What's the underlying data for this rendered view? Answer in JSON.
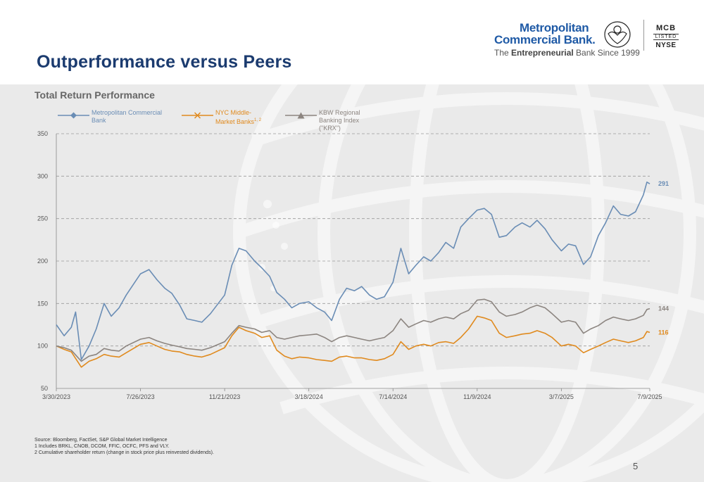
{
  "header": {
    "title": "Outperformance versus Peers"
  },
  "logo": {
    "line1": "Metropolitan",
    "line2": "Commercial Bank.",
    "tagline_pre": "The ",
    "tagline_bold": "Entrepreneurial",
    "tagline_post": " Bank Since 1999",
    "ticker": "MCB",
    "listed": "LISTED",
    "exchange": "NYSE"
  },
  "colors": {
    "mcb": "#6a8db5",
    "nyc": "#e08a1e",
    "krx": "#8c8580",
    "title": "#1b3b6f"
  },
  "chart_data": {
    "type": "line",
    "title": "Total Return Performance",
    "ylim": [
      50,
      350
    ],
    "yticks": [
      50,
      100,
      150,
      200,
      250,
      300,
      350
    ],
    "xticks": [
      "3/30/2023",
      "7/26/2023",
      "11/21/2023",
      "3/18/2024",
      "7/14/2024",
      "11/9/2024",
      "3/7/2025",
      "7/9/2025"
    ],
    "grid": "horizontal dashed",
    "legend_position": "top-left",
    "series": [
      {
        "name": "Metropolitan Commercial Bank",
        "marker": "diamond",
        "color": "#6a8db5",
        "end_label": "291",
        "values": [
          [
            "3/30/2023",
            125
          ],
          [
            "4/10/2023",
            112
          ],
          [
            "4/20/2023",
            122
          ],
          [
            "4/26/2023",
            140
          ],
          [
            "5/4/2023",
            84
          ],
          [
            "5/15/2023",
            100
          ],
          [
            "5/25/2023",
            120
          ],
          [
            "6/5/2023",
            150
          ],
          [
            "6/15/2023",
            135
          ],
          [
            "6/26/2023",
            145
          ],
          [
            "7/6/2023",
            160
          ],
          [
            "7/26/2023",
            185
          ],
          [
            "8/7/2023",
            190
          ],
          [
            "8/18/2023",
            178
          ],
          [
            "8/29/2023",
            168
          ],
          [
            "9/8/2023",
            162
          ],
          [
            "9/19/2023",
            148
          ],
          [
            "9/29/2023",
            132
          ],
          [
            "10/10/2023",
            130
          ],
          [
            "10/20/2023",
            128
          ],
          [
            "11/1/2023",
            138
          ],
          [
            "11/21/2023",
            160
          ],
          [
            "12/1/2023",
            195
          ],
          [
            "12/11/2023",
            215
          ],
          [
            "12/21/2023",
            212
          ],
          [
            "1/2/2024",
            200
          ],
          [
            "1/12/2024",
            192
          ],
          [
            "1/23/2024",
            182
          ],
          [
            "2/2/2024",
            163
          ],
          [
            "2/13/2024",
            155
          ],
          [
            "2/23/2024",
            145
          ],
          [
            "3/5/2024",
            150
          ],
          [
            "3/18/2024",
            152
          ],
          [
            "3/29/2024",
            145
          ],
          [
            "4/9/2024",
            140
          ],
          [
            "4/19/2024",
            130
          ],
          [
            "4/30/2024",
            155
          ],
          [
            "5/10/2024",
            168
          ],
          [
            "5/21/2024",
            165
          ],
          [
            "5/31/2024",
            170
          ],
          [
            "6/11/2024",
            160
          ],
          [
            "6/21/2024",
            155
          ],
          [
            "7/2/2024",
            158
          ],
          [
            "7/14/2024",
            175
          ],
          [
            "7/25/2024",
            215
          ],
          [
            "8/5/2024",
            185
          ],
          [
            "8/15/2024",
            195
          ],
          [
            "8/26/2024",
            205
          ],
          [
            "9/5/2024",
            200
          ],
          [
            "9/16/2024",
            210
          ],
          [
            "9/26/2024",
            222
          ],
          [
            "10/7/2024",
            215
          ],
          [
            "10/17/2024",
            240
          ],
          [
            "10/28/2024",
            250
          ],
          [
            "11/9/2024",
            260
          ],
          [
            "11/19/2024",
            262
          ],
          [
            "11/29/2024",
            255
          ],
          [
            "12/10/2024",
            228
          ],
          [
            "12/20/2024",
            230
          ],
          [
            "1/1/2025",
            240
          ],
          [
            "1/11/2025",
            245
          ],
          [
            "1/22/2025",
            240
          ],
          [
            "2/1/2025",
            248
          ],
          [
            "2/12/2025",
            238
          ],
          [
            "2/22/2025",
            225
          ],
          [
            "3/7/2025",
            212
          ],
          [
            "3/17/2025",
            220
          ],
          [
            "3/27/2025",
            218
          ],
          [
            "4/7/2025",
            196
          ],
          [
            "4/17/2025",
            205
          ],
          [
            "4/28/2025",
            230
          ],
          [
            "5/8/2025",
            245
          ],
          [
            "5/19/2025",
            265
          ],
          [
            "5/29/2025",
            255
          ],
          [
            "6/9/2025",
            253
          ],
          [
            "6/19/2025",
            258
          ],
          [
            "6/30/2025",
            278
          ],
          [
            "7/5/2025",
            293
          ],
          [
            "7/9/2025",
            291
          ]
        ]
      },
      {
        "name": "NYC Middle-Market Banks",
        "name_sup": "1, 2",
        "marker": "x",
        "color": "#e08a1e",
        "end_label": "116",
        "values": [
          [
            "3/30/2023",
            100
          ],
          [
            "4/10/2023",
            96
          ],
          [
            "4/20/2023",
            93
          ],
          [
            "5/4/2023",
            75
          ],
          [
            "5/15/2023",
            82
          ],
          [
            "5/25/2023",
            85
          ],
          [
            "6/5/2023",
            90
          ],
          [
            "6/15/2023",
            88
          ],
          [
            "6/26/2023",
            87
          ],
          [
            "7/6/2023",
            92
          ],
          [
            "7/26/2023",
            102
          ],
          [
            "8/7/2023",
            104
          ],
          [
            "8/18/2023",
            100
          ],
          [
            "8/29/2023",
            96
          ],
          [
            "9/8/2023",
            94
          ],
          [
            "9/19/2023",
            93
          ],
          [
            "9/29/2023",
            90
          ],
          [
            "10/10/2023",
            88
          ],
          [
            "10/20/2023",
            87
          ],
          [
            "11/1/2023",
            90
          ],
          [
            "11/21/2023",
            98
          ],
          [
            "12/1/2023",
            112
          ],
          [
            "12/11/2023",
            122
          ],
          [
            "12/21/2023",
            118
          ],
          [
            "1/2/2024",
            115
          ],
          [
            "1/12/2024",
            110
          ],
          [
            "1/23/2024",
            112
          ],
          [
            "2/2/2024",
            95
          ],
          [
            "2/13/2024",
            88
          ],
          [
            "2/23/2024",
            85
          ],
          [
            "3/5/2024",
            87
          ],
          [
            "3/18/2024",
            86
          ],
          [
            "3/29/2024",
            84
          ],
          [
            "4/9/2024",
            83
          ],
          [
            "4/19/2024",
            82
          ],
          [
            "4/30/2024",
            87
          ],
          [
            "5/10/2024",
            88
          ],
          [
            "5/21/2024",
            86
          ],
          [
            "5/31/2024",
            86
          ],
          [
            "6/11/2024",
            84
          ],
          [
            "6/21/2024",
            83
          ],
          [
            "7/2/2024",
            85
          ],
          [
            "7/14/2024",
            90
          ],
          [
            "7/25/2024",
            105
          ],
          [
            "8/5/2024",
            96
          ],
          [
            "8/15/2024",
            100
          ],
          [
            "8/26/2024",
            102
          ],
          [
            "9/5/2024",
            100
          ],
          [
            "9/16/2024",
            104
          ],
          [
            "9/26/2024",
            105
          ],
          [
            "10/7/2024",
            103
          ],
          [
            "10/17/2024",
            110
          ],
          [
            "10/28/2024",
            120
          ],
          [
            "11/9/2024",
            135
          ],
          [
            "11/19/2024",
            133
          ],
          [
            "11/29/2024",
            130
          ],
          [
            "12/10/2024",
            115
          ],
          [
            "12/20/2024",
            110
          ],
          [
            "1/1/2025",
            112
          ],
          [
            "1/11/2025",
            114
          ],
          [
            "1/22/2025",
            115
          ],
          [
            "2/1/2025",
            118
          ],
          [
            "2/12/2025",
            115
          ],
          [
            "2/22/2025",
            110
          ],
          [
            "3/7/2025",
            100
          ],
          [
            "3/17/2025",
            102
          ],
          [
            "3/27/2025",
            100
          ],
          [
            "4/7/2025",
            92
          ],
          [
            "4/17/2025",
            96
          ],
          [
            "4/28/2025",
            100
          ],
          [
            "5/8/2025",
            104
          ],
          [
            "5/19/2025",
            108
          ],
          [
            "5/29/2025",
            106
          ],
          [
            "6/9/2025",
            104
          ],
          [
            "6/19/2025",
            106
          ],
          [
            "6/30/2025",
            110
          ],
          [
            "7/5/2025",
            117
          ],
          [
            "7/9/2025",
            116
          ]
        ]
      },
      {
        "name": "KBW Regional Banking Index (\"KRX\")",
        "marker": "triangle",
        "color": "#8c8580",
        "end_label": "144",
        "values": [
          [
            "3/30/2023",
            100
          ],
          [
            "4/10/2023",
            98
          ],
          [
            "4/20/2023",
            95
          ],
          [
            "5/4/2023",
            82
          ],
          [
            "5/15/2023",
            88
          ],
          [
            "5/25/2023",
            90
          ],
          [
            "6/5/2023",
            97
          ],
          [
            "6/15/2023",
            95
          ],
          [
            "6/26/2023",
            94
          ],
          [
            "7/6/2023",
            100
          ],
          [
            "7/26/2023",
            108
          ],
          [
            "8/7/2023",
            110
          ],
          [
            "8/18/2023",
            106
          ],
          [
            "8/29/2023",
            103
          ],
          [
            "9/8/2023",
            101
          ],
          [
            "9/19/2023",
            99
          ],
          [
            "9/29/2023",
            97
          ],
          [
            "10/10/2023",
            96
          ],
          [
            "10/20/2023",
            95
          ],
          [
            "11/1/2023",
            98
          ],
          [
            "11/21/2023",
            105
          ],
          [
            "12/1/2023",
            115
          ],
          [
            "12/11/2023",
            124
          ],
          [
            "12/21/2023",
            122
          ],
          [
            "1/2/2024",
            120
          ],
          [
            "1/12/2024",
            116
          ],
          [
            "1/23/2024",
            118
          ],
          [
            "2/2/2024",
            110
          ],
          [
            "2/13/2024",
            108
          ],
          [
            "2/23/2024",
            110
          ],
          [
            "3/5/2024",
            112
          ],
          [
            "3/18/2024",
            113
          ],
          [
            "3/29/2024",
            114
          ],
          [
            "4/9/2024",
            110
          ],
          [
            "4/19/2024",
            105
          ],
          [
            "4/30/2024",
            110
          ],
          [
            "5/10/2024",
            112
          ],
          [
            "5/21/2024",
            110
          ],
          [
            "5/31/2024",
            108
          ],
          [
            "6/11/2024",
            106
          ],
          [
            "6/21/2024",
            108
          ],
          [
            "7/2/2024",
            110
          ],
          [
            "7/14/2024",
            118
          ],
          [
            "7/25/2024",
            132
          ],
          [
            "8/5/2024",
            122
          ],
          [
            "8/15/2024",
            126
          ],
          [
            "8/26/2024",
            130
          ],
          [
            "9/5/2024",
            128
          ],
          [
            "9/16/2024",
            132
          ],
          [
            "9/26/2024",
            134
          ],
          [
            "10/7/2024",
            132
          ],
          [
            "10/17/2024",
            138
          ],
          [
            "10/28/2024",
            142
          ],
          [
            "11/9/2024",
            154
          ],
          [
            "11/19/2024",
            155
          ],
          [
            "11/29/2024",
            152
          ],
          [
            "12/10/2024",
            140
          ],
          [
            "12/20/2024",
            135
          ],
          [
            "1/1/2025",
            137
          ],
          [
            "1/11/2025",
            140
          ],
          [
            "1/22/2025",
            145
          ],
          [
            "2/1/2025",
            148
          ],
          [
            "2/12/2025",
            145
          ],
          [
            "2/22/2025",
            138
          ],
          [
            "3/7/2025",
            128
          ],
          [
            "3/17/2025",
            130
          ],
          [
            "3/27/2025",
            128
          ],
          [
            "4/7/2025",
            115
          ],
          [
            "4/17/2025",
            120
          ],
          [
            "4/28/2025",
            124
          ],
          [
            "5/8/2025",
            130
          ],
          [
            "5/19/2025",
            134
          ],
          [
            "5/29/2025",
            132
          ],
          [
            "6/9/2025",
            130
          ],
          [
            "6/19/2025",
            132
          ],
          [
            "6/30/2025",
            136
          ],
          [
            "7/5/2025",
            143
          ],
          [
            "7/9/2025",
            144
          ]
        ]
      }
    ]
  },
  "legend": {
    "mcb": "Metropolitan Commercial Bank",
    "nyc": "NYC Middle-Market Banks",
    "nyc_sup": "1, 2",
    "krx": "KBW Regional Banking Index (\"KRX\")"
  },
  "footnotes": {
    "source": "Source: Bloomberg, FactSet, S&P Global Market Intelligence",
    "note1": "1 Includes BRKL, CNOB, DCOM, FFIC, OCFC, PFS and VLY.",
    "note2": "2 Cumulative shareholder return (change in stock price plus reinvested dividends)."
  },
  "page_number": "5"
}
